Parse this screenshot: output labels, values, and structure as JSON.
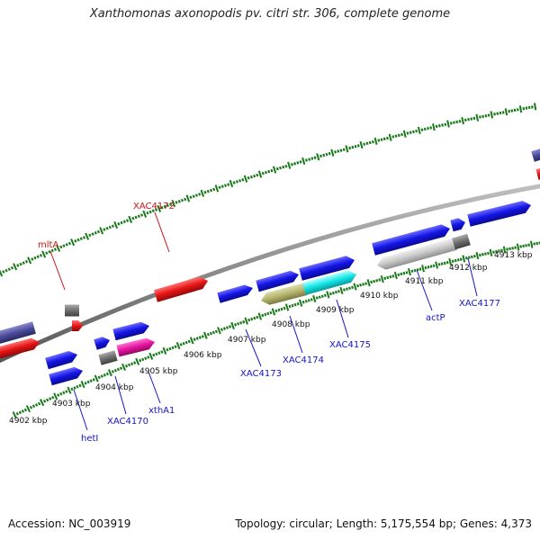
{
  "title": "Xanthomonas axonopodis pv. citri str. 306, complete genome",
  "footer": {
    "accession": "Accession: NC_003919",
    "summary": "Topology: circular; Length: 5,175,554 bp; Genes: 4,373"
  },
  "colors": {
    "background": "#ffffff",
    "backbone": "#8a8a8a",
    "tick": "#1a7a1a",
    "blue_gene": "#1414e6",
    "red_gene": "#e61414",
    "purple_gene": "#4a4a9a",
    "magenta_gene": "#e614a0",
    "cyan_gene": "#14e6e6",
    "olive_gene": "#b4b46e",
    "lightgray_gene": "#c8c8c8",
    "darkgray_gene": "#6e6e6e",
    "label_blue": "#1414c8",
    "label_red": "#c81414"
  },
  "kbp_labels": [
    {
      "label": "4902 kbp"
    },
    {
      "label": "4903 kbp"
    },
    {
      "label": "4904 kbp"
    },
    {
      "label": "4905 kbp"
    },
    {
      "label": "4906 kbp"
    },
    {
      "label": "4907 kbp"
    },
    {
      "label": "4908 kbp"
    },
    {
      "label": "4909 kbp"
    },
    {
      "label": "4910 kbp"
    },
    {
      "label": "4911 kbp"
    },
    {
      "label": "4912 kbp"
    },
    {
      "label": "4913 kbp"
    }
  ],
  "gene_labels": [
    {
      "name": "mltA",
      "color": "red"
    },
    {
      "name": "XAC4172",
      "color": "red"
    },
    {
      "name": "hetI",
      "color": "blue"
    },
    {
      "name": "XAC4170",
      "color": "blue"
    },
    {
      "name": "xthA1",
      "color": "blue"
    },
    {
      "name": "XAC4173",
      "color": "blue"
    },
    {
      "name": "XAC4174",
      "color": "blue"
    },
    {
      "name": "XAC4175",
      "color": "blue"
    },
    {
      "name": "actP",
      "color": "blue"
    },
    {
      "name": "XAC4177",
      "color": "blue"
    }
  ]
}
